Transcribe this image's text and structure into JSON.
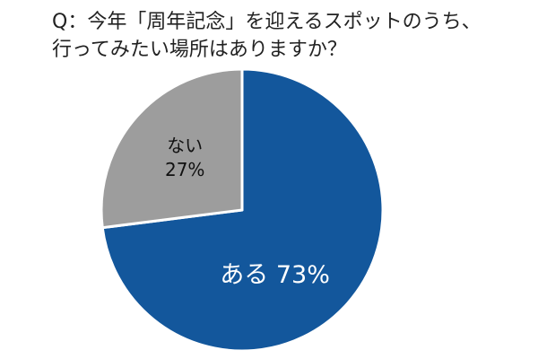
{
  "question": {
    "line1": "Q：今年「周年記念」を迎えるスポットのうち、",
    "line2": "行ってみたい場所はありますか？"
  },
  "chart_data": {
    "type": "pie",
    "title": "Q：今年「周年記念」を迎えるスポットのうち、行ってみたい場所はありますか？",
    "start_angle_deg": 0,
    "direction": "clockwise",
    "slices": [
      {
        "name": "ある",
        "value": 73,
        "label": "ある 73%",
        "color": "#13579c"
      },
      {
        "name": "ない",
        "value": 27,
        "label_name": "ない",
        "label_pct": "27%",
        "color": "#9d9d9d"
      }
    ],
    "colors": {
      "outline": "#ffffff",
      "slice_text_dark_bg": "#ffffff",
      "slice_text_light_bg": "#111111"
    }
  }
}
